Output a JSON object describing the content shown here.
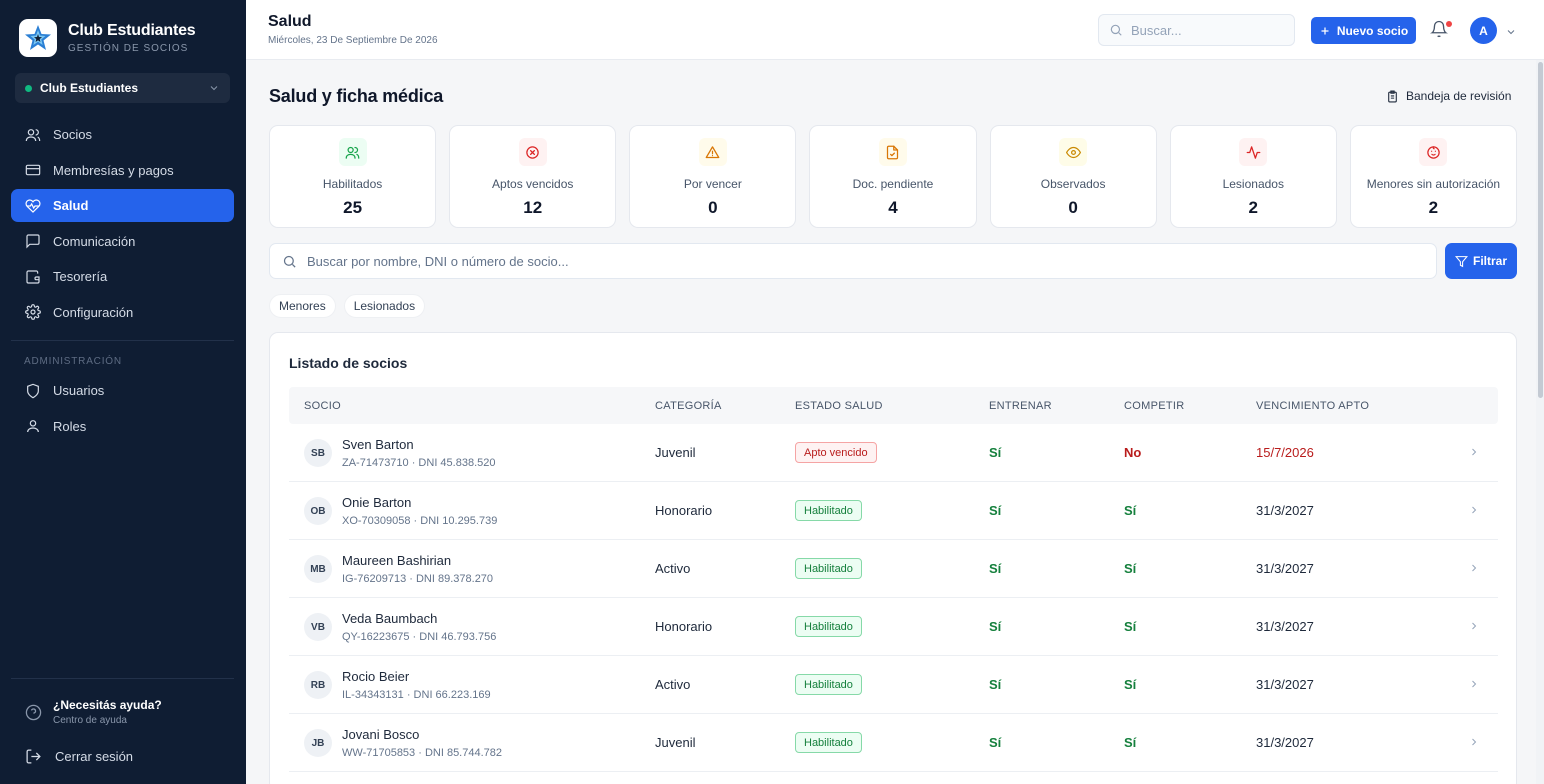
{
  "brand": {
    "name": "Club Estudiantes",
    "subtitle": "GESTIÓN DE SOCIOS"
  },
  "club_selector": {
    "value": "Club Estudiantes"
  },
  "nav": [
    {
      "label": "Socios",
      "icon": "users-icon"
    },
    {
      "label": "Membresías y pagos",
      "icon": "credit-card-icon"
    },
    {
      "label": "Salud",
      "icon": "heart-pulse-icon",
      "active": true
    },
    {
      "label": "Comunicación",
      "icon": "message-icon"
    },
    {
      "label": "Tesorería",
      "icon": "wallet-icon"
    },
    {
      "label": "Configuración",
      "icon": "gear-icon"
    }
  ],
  "admin_section": "ADMINISTRACIÓN",
  "admin_nav": [
    {
      "label": "Usuarios",
      "icon": "shield-icon"
    },
    {
      "label": "Roles",
      "icon": "user-icon"
    }
  ],
  "help": {
    "title": "¿Necesitás ayuda?",
    "subtitle": "Centro de ayuda"
  },
  "logout": "Cerrar sesión",
  "header": {
    "title": "Salud",
    "date": "Miércoles, 23 De Septiembre De 2026",
    "search_placeholder": "Buscar...",
    "new_button": "Nuevo socio",
    "avatar": "A"
  },
  "main": {
    "title": "Salud y ficha médica",
    "review_button": "Bandeja de revisión",
    "stats": [
      {
        "label": "Habilitados",
        "value": "25",
        "icon": "users-icon",
        "color": "#16a34a",
        "bg": "#ecfdf3"
      },
      {
        "label": "Aptos vencidos",
        "value": "12",
        "icon": "x-circle-icon",
        "color": "#dc2626",
        "bg": "#fef2f2"
      },
      {
        "label": "Por vencer",
        "value": "0",
        "icon": "warning-icon",
        "color": "#d97706",
        "bg": "#fffbeb"
      },
      {
        "label": "Doc. pendiente",
        "value": "4",
        "icon": "file-check-icon",
        "color": "#d97706",
        "bg": "#fffbeb"
      },
      {
        "label": "Observados",
        "value": "0",
        "icon": "eye-icon",
        "color": "#ca8a04",
        "bg": "#fefce8"
      },
      {
        "label": "Lesionados",
        "value": "2",
        "icon": "activity-icon",
        "color": "#dc2626",
        "bg": "#fef2f2"
      },
      {
        "label": "Menores sin autorización",
        "value": "2",
        "icon": "baby-icon",
        "color": "#dc2626",
        "bg": "#fef2f2"
      }
    ],
    "filter_placeholder": "Buscar por nombre, DNI o número de socio...",
    "filter_button": "Filtrar",
    "chips": [
      "Menores",
      "Lesionados"
    ],
    "list_title": "Listado de socios",
    "columns": [
      "SOCIO",
      "CATEGORÍA",
      "ESTADO SALUD",
      "ENTRENAR",
      "COMPETIR",
      "VENCIMIENTO APTO"
    ],
    "rows": [
      {
        "initials": "SB",
        "name": "Sven Barton",
        "meta": "ZA-71473710 · DNI 45.838.520",
        "category": "Juvenil",
        "status": "Apto vencido",
        "status_type": "bad",
        "train": "Sí",
        "compete": "No",
        "expiry": "15/7/2026",
        "expired": true
      },
      {
        "initials": "OB",
        "name": "Onie Barton",
        "meta": "XO-70309058 · DNI 10.295.739",
        "category": "Honorario",
        "status": "Habilitado",
        "status_type": "ok",
        "train": "Sí",
        "compete": "Sí",
        "expiry": "31/3/2027",
        "expired": false
      },
      {
        "initials": "MB",
        "name": "Maureen Bashirian",
        "meta": "IG-76209713 · DNI 89.378.270",
        "category": "Activo",
        "status": "Habilitado",
        "status_type": "ok",
        "train": "Sí",
        "compete": "Sí",
        "expiry": "31/3/2027",
        "expired": false
      },
      {
        "initials": "VB",
        "name": "Veda Baumbach",
        "meta": "QY-16223675 · DNI 46.793.756",
        "category": "Honorario",
        "status": "Habilitado",
        "status_type": "ok",
        "train": "Sí",
        "compete": "Sí",
        "expiry": "31/3/2027",
        "expired": false
      },
      {
        "initials": "RB",
        "name": "Rocio Beier",
        "meta": "IL-34343131 · DNI 66.223.169",
        "category": "Activo",
        "status": "Habilitado",
        "status_type": "ok",
        "train": "Sí",
        "compete": "Sí",
        "expiry": "31/3/2027",
        "expired": false
      },
      {
        "initials": "JB",
        "name": "Jovani Bosco",
        "meta": "WW-71705853 · DNI 85.744.782",
        "category": "Juvenil",
        "status": "Habilitado",
        "status_type": "ok",
        "train": "Sí",
        "compete": "Sí",
        "expiry": "31/3/2027",
        "expired": false
      }
    ]
  }
}
